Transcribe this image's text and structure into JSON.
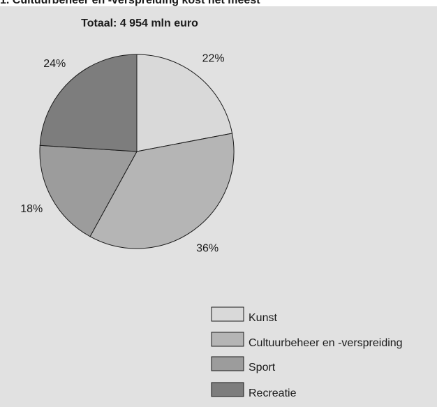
{
  "heading": "1. Cultuurbeheer en -verspreiding kost het meest",
  "chart_data": {
    "type": "pie",
    "title": "Totaal: 4 954 mln euro",
    "categories": [
      "Kunst",
      "Cultuurbeheer en -verspreiding",
      "Sport",
      "Recreatie"
    ],
    "values": [
      22,
      36,
      18,
      24
    ],
    "value_labels": [
      "22%",
      "36%",
      "18%",
      "24%"
    ],
    "colors": [
      "#d9d9d9",
      "#b5b5b5",
      "#9c9c9c",
      "#7d7d7d"
    ]
  }
}
